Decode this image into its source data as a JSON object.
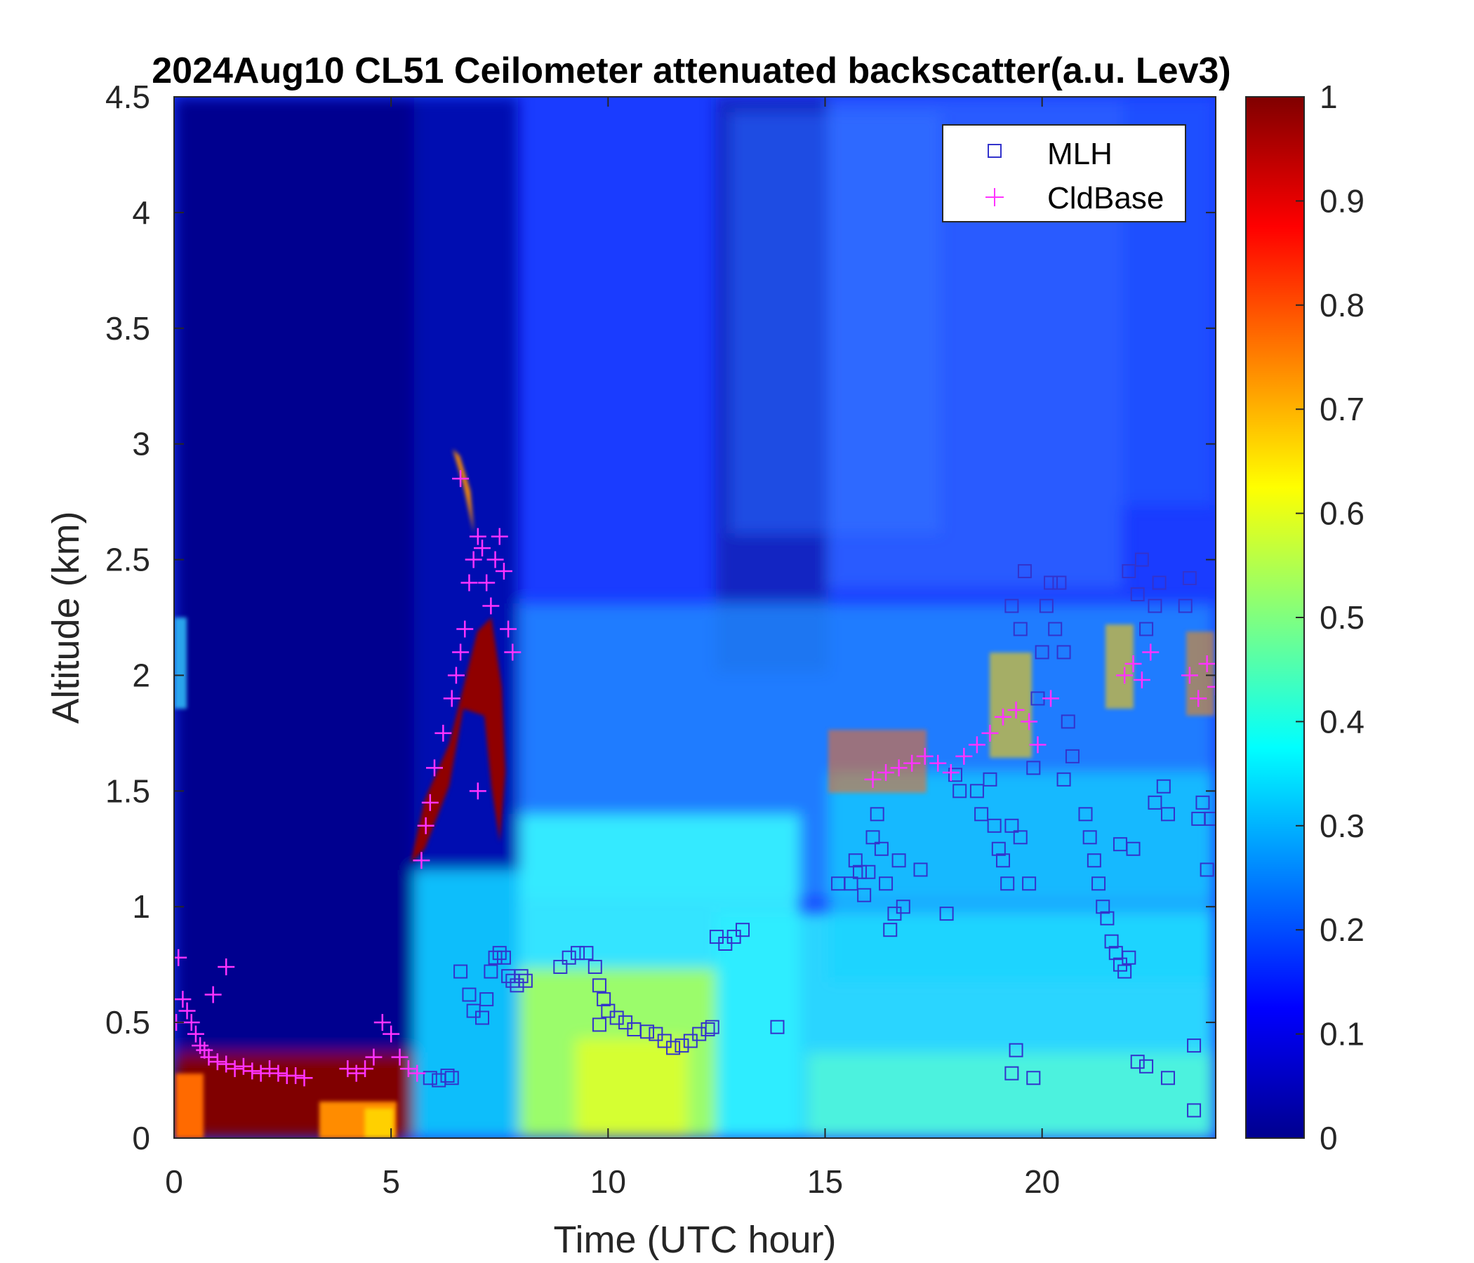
{
  "chart_data": {
    "type": "heatmap",
    "title": "2024Aug10 CL51 Ceilometer attenuated backscatter(a.u. Lev3)",
    "xlabel": "Time (UTC hour)",
    "ylabel": "Altitude (km)",
    "xlim": [
      0,
      24
    ],
    "ylim": [
      0,
      4.5
    ],
    "xticks": [
      0,
      5,
      10,
      15,
      20
    ],
    "yticks": [
      0,
      0.5,
      1,
      1.5,
      2,
      2.5,
      3,
      3.5,
      4,
      4.5
    ],
    "colorbar": {
      "colormap": "jet",
      "clim": [
        0,
        1
      ],
      "ticks": [
        0,
        0.1,
        0.2,
        0.3,
        0.4,
        0.5,
        0.6,
        0.7,
        0.8,
        0.9,
        1
      ]
    },
    "grid": false,
    "legend": {
      "position": "top-right",
      "entries": [
        "MLH",
        "CldBase"
      ]
    },
    "series": [
      {
        "name": "MLH",
        "marker": "square",
        "color": "#3333cc",
        "points": [
          [
            5.9,
            0.26
          ],
          [
            6.1,
            0.25
          ],
          [
            6.3,
            0.27
          ],
          [
            6.4,
            0.26
          ],
          [
            6.6,
            0.72
          ],
          [
            6.8,
            0.62
          ],
          [
            6.9,
            0.55
          ],
          [
            7.1,
            0.52
          ],
          [
            7.2,
            0.6
          ],
          [
            7.3,
            0.72
          ],
          [
            7.4,
            0.78
          ],
          [
            7.5,
            0.8
          ],
          [
            7.6,
            0.78
          ],
          [
            7.7,
            0.7
          ],
          [
            7.8,
            0.68
          ],
          [
            7.9,
            0.66
          ],
          [
            8.0,
            0.7
          ],
          [
            8.1,
            0.68
          ],
          [
            8.9,
            0.74
          ],
          [
            9.1,
            0.78
          ],
          [
            9.3,
            0.8
          ],
          [
            9.5,
            0.8
          ],
          [
            9.7,
            0.74
          ],
          [
            9.8,
            0.66
          ],
          [
            9.9,
            0.6
          ],
          [
            10.0,
            0.55
          ],
          [
            10.2,
            0.52
          ],
          [
            10.4,
            0.5
          ],
          [
            10.6,
            0.47
          ],
          [
            10.9,
            0.46
          ],
          [
            11.1,
            0.45
          ],
          [
            11.3,
            0.42
          ],
          [
            11.5,
            0.39
          ],
          [
            11.7,
            0.4
          ],
          [
            11.9,
            0.42
          ],
          [
            12.1,
            0.45
          ],
          [
            12.3,
            0.47
          ],
          [
            12.4,
            0.48
          ],
          [
            9.8,
            0.49
          ],
          [
            12.5,
            0.87
          ],
          [
            12.7,
            0.84
          ],
          [
            12.9,
            0.87
          ],
          [
            13.1,
            0.9
          ],
          [
            13.9,
            0.48
          ],
          [
            15.3,
            1.1
          ],
          [
            15.6,
            1.1
          ],
          [
            15.7,
            1.2
          ],
          [
            15.8,
            1.15
          ],
          [
            15.9,
            1.05
          ],
          [
            16.0,
            1.15
          ],
          [
            16.1,
            1.3
          ],
          [
            16.2,
            1.4
          ],
          [
            16.3,
            1.25
          ],
          [
            16.4,
            1.1
          ],
          [
            16.6,
            0.97
          ],
          [
            16.5,
            0.9
          ],
          [
            16.7,
            1.2
          ],
          [
            16.8,
            1.0
          ],
          [
            17.2,
            1.16
          ],
          [
            18.0,
            1.57
          ],
          [
            18.1,
            1.5
          ],
          [
            17.8,
            0.97
          ],
          [
            18.5,
            1.5
          ],
          [
            18.6,
            1.4
          ],
          [
            18.8,
            1.55
          ],
          [
            18.9,
            1.35
          ],
          [
            19.0,
            1.25
          ],
          [
            19.1,
            1.2
          ],
          [
            19.2,
            1.1
          ],
          [
            19.3,
            1.35
          ],
          [
            19.5,
            1.3
          ],
          [
            19.7,
            1.1
          ],
          [
            19.8,
            1.6
          ],
          [
            19.9,
            1.9
          ],
          [
            20.0,
            2.1
          ],
          [
            20.1,
            2.3
          ],
          [
            20.2,
            2.4
          ],
          [
            19.6,
            2.45
          ],
          [
            19.3,
            2.3
          ],
          [
            19.5,
            2.2
          ],
          [
            20.3,
            2.2
          ],
          [
            20.4,
            2.4
          ],
          [
            20.5,
            2.1
          ],
          [
            20.6,
            1.8
          ],
          [
            20.7,
            1.65
          ],
          [
            20.5,
            1.55
          ],
          [
            19.4,
            0.38
          ],
          [
            19.3,
            0.28
          ],
          [
            19.8,
            0.26
          ],
          [
            21.0,
            1.4
          ],
          [
            21.1,
            1.3
          ],
          [
            21.2,
            1.2
          ],
          [
            21.3,
            1.1
          ],
          [
            21.4,
            1.0
          ],
          [
            21.5,
            0.95
          ],
          [
            21.6,
            0.85
          ],
          [
            21.7,
            0.8
          ],
          [
            21.8,
            0.75
          ],
          [
            21.9,
            0.72
          ],
          [
            22.0,
            0.78
          ],
          [
            22.1,
            1.25
          ],
          [
            21.8,
            1.27
          ],
          [
            22.0,
            2.45
          ],
          [
            22.2,
            2.35
          ],
          [
            22.3,
            2.5
          ],
          [
            22.4,
            2.2
          ],
          [
            22.6,
            2.3
          ],
          [
            22.7,
            2.4
          ],
          [
            22.6,
            1.45
          ],
          [
            22.8,
            1.52
          ],
          [
            22.9,
            1.4
          ],
          [
            22.2,
            0.33
          ],
          [
            22.4,
            0.31
          ],
          [
            22.9,
            0.26
          ],
          [
            23.3,
            2.3
          ],
          [
            23.4,
            2.42
          ],
          [
            23.6,
            1.38
          ],
          [
            23.7,
            1.45
          ],
          [
            23.9,
            1.38
          ],
          [
            23.8,
            1.16
          ],
          [
            23.5,
            0.4
          ],
          [
            23.5,
            0.12
          ]
        ]
      },
      {
        "name": "CldBase",
        "marker": "plus",
        "color": "#ff33ff",
        "points": [
          [
            0.05,
            0.5
          ],
          [
            0.1,
            0.78
          ],
          [
            0.2,
            0.6
          ],
          [
            0.3,
            0.55
          ],
          [
            0.4,
            0.5
          ],
          [
            0.5,
            0.45
          ],
          [
            0.6,
            0.4
          ],
          [
            0.7,
            0.38
          ],
          [
            0.8,
            0.35
          ],
          [
            1.0,
            0.33
          ],
          [
            1.2,
            0.32
          ],
          [
            1.4,
            0.3
          ],
          [
            1.6,
            0.31
          ],
          [
            1.8,
            0.29
          ],
          [
            2.0,
            0.28
          ],
          [
            2.2,
            0.3
          ],
          [
            2.4,
            0.28
          ],
          [
            2.6,
            0.27
          ],
          [
            2.8,
            0.27
          ],
          [
            3.0,
            0.26
          ],
          [
            1.2,
            0.74
          ],
          [
            0.9,
            0.62
          ],
          [
            4.0,
            0.3
          ],
          [
            4.2,
            0.28
          ],
          [
            4.4,
            0.3
          ],
          [
            4.6,
            0.35
          ],
          [
            4.8,
            0.5
          ],
          [
            5.0,
            0.45
          ],
          [
            5.2,
            0.35
          ],
          [
            5.4,
            0.3
          ],
          [
            5.6,
            0.28
          ],
          [
            5.7,
            1.2
          ],
          [
            5.8,
            1.35
          ],
          [
            5.9,
            1.45
          ],
          [
            6.0,
            1.6
          ],
          [
            6.2,
            1.75
          ],
          [
            6.4,
            1.9
          ],
          [
            6.5,
            2.0
          ],
          [
            6.6,
            2.1
          ],
          [
            6.7,
            2.2
          ],
          [
            6.8,
            2.4
          ],
          [
            6.9,
            2.5
          ],
          [
            7.0,
            2.6
          ],
          [
            7.1,
            2.55
          ],
          [
            7.2,
            2.4
          ],
          [
            7.3,
            2.3
          ],
          [
            7.4,
            2.5
          ],
          [
            7.5,
            2.6
          ],
          [
            7.6,
            2.45
          ],
          [
            7.7,
            2.2
          ],
          [
            7.8,
            2.1
          ],
          [
            7.0,
            1.5
          ],
          [
            6.6,
            2.85
          ],
          [
            16.1,
            1.55
          ],
          [
            16.4,
            1.58
          ],
          [
            16.7,
            1.6
          ],
          [
            17.0,
            1.62
          ],
          [
            17.3,
            1.65
          ],
          [
            17.6,
            1.62
          ],
          [
            17.9,
            1.58
          ],
          [
            18.2,
            1.65
          ],
          [
            18.5,
            1.7
          ],
          [
            18.8,
            1.75
          ],
          [
            19.1,
            1.82
          ],
          [
            19.4,
            1.85
          ],
          [
            19.7,
            1.8
          ],
          [
            19.9,
            1.7
          ],
          [
            20.2,
            1.9
          ],
          [
            21.9,
            2.0
          ],
          [
            22.1,
            2.05
          ],
          [
            22.3,
            1.98
          ],
          [
            22.5,
            2.1
          ],
          [
            23.4,
            2.0
          ],
          [
            23.6,
            1.9
          ],
          [
            23.8,
            2.05
          ],
          [
            24.0,
            1.95
          ]
        ]
      }
    ]
  }
}
